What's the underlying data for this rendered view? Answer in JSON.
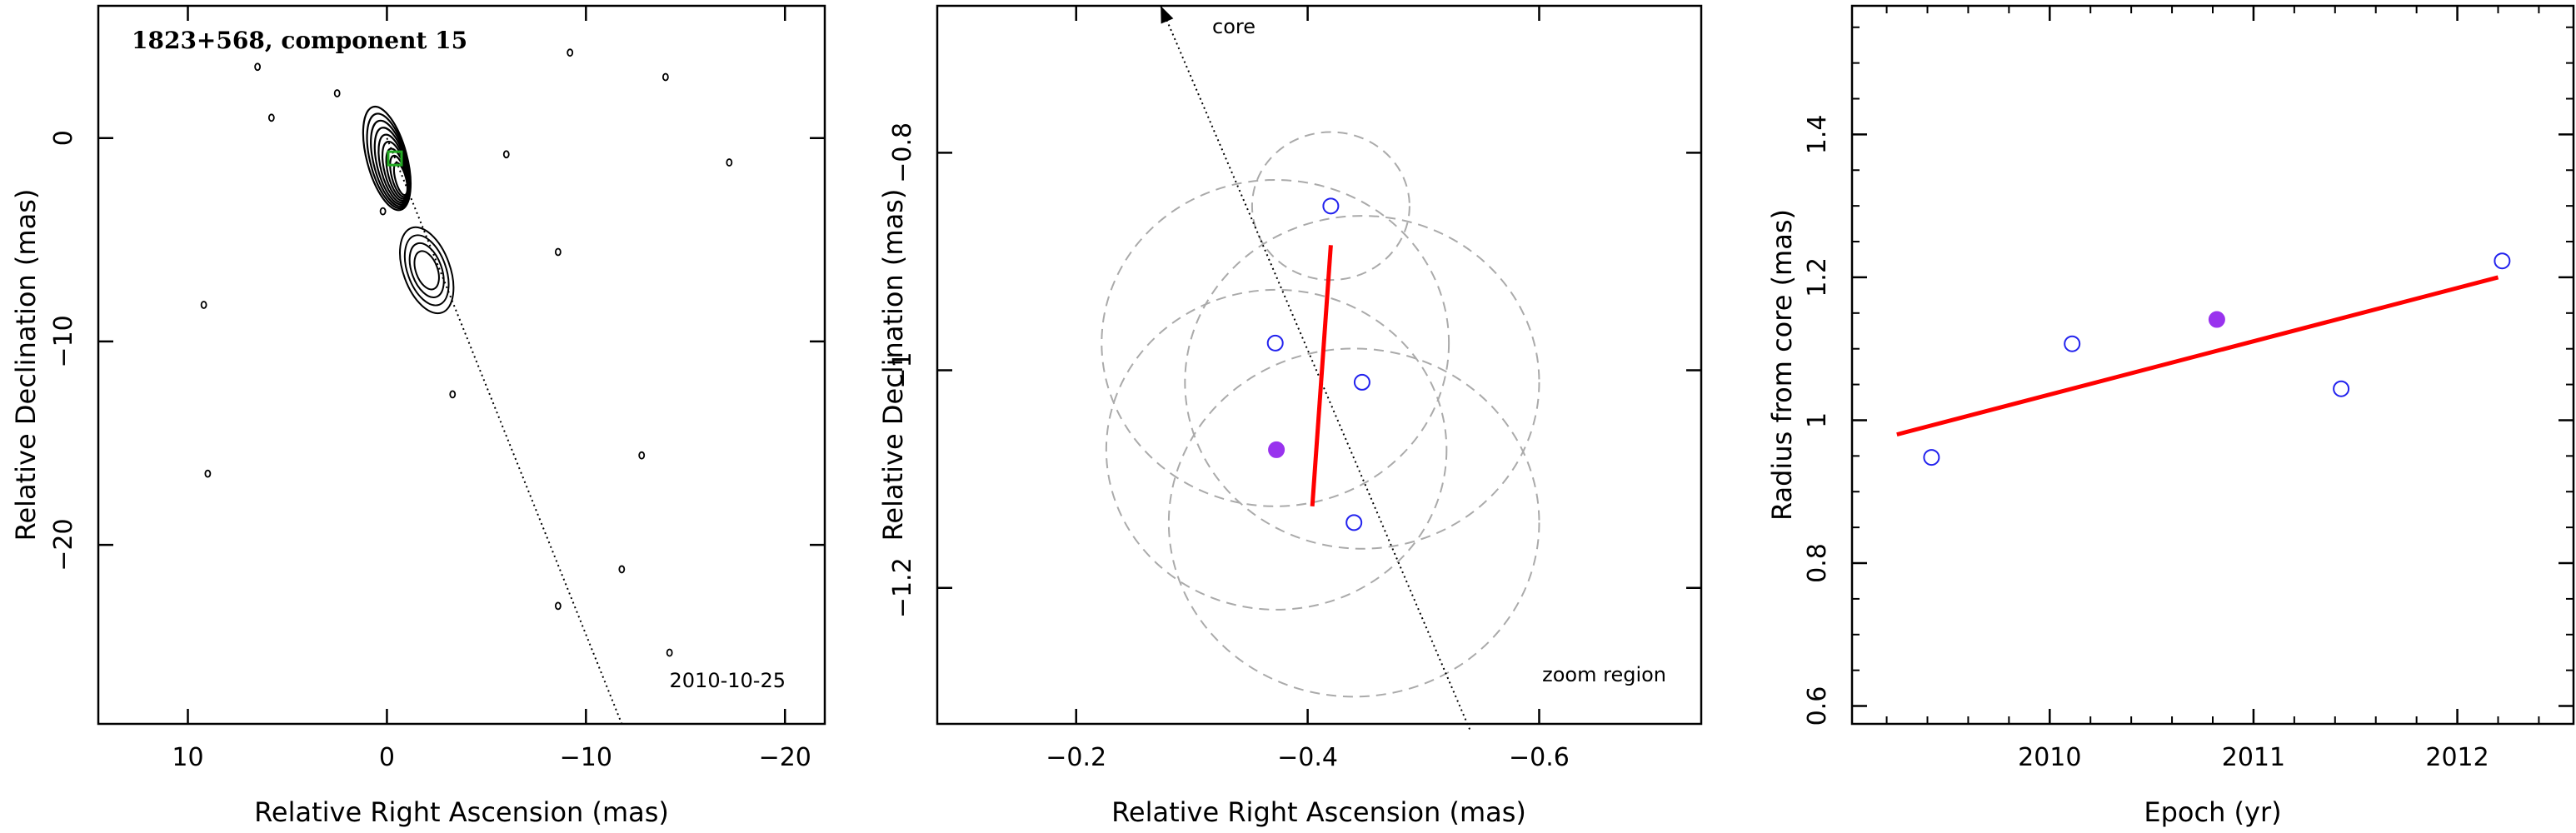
{
  "figure": {
    "panels": [
      {
        "id": "map",
        "title": "1823+568, component 15",
        "date_label": "2010-10-25"
      },
      {
        "id": "zoom",
        "core_label": "core",
        "region_label": "zoom region"
      },
      {
        "id": "radius",
        "fit_line": {
          "x0": 2009.25,
          "y0": 0.98,
          "x1": 2012.2,
          "y1": 1.2
        }
      }
    ]
  },
  "colors": {
    "fit_line": "#ff0000",
    "highlight_point": "#9933ee",
    "open_points": "#2222ee",
    "error_circles": "#aaaaaa",
    "contours": "#000000"
  },
  "chart_data": [
    {
      "type": "scatter",
      "title": "1823+568, component 15",
      "xlabel": "Relative Right Ascension (mas)",
      "ylabel": "Relative Declination (mas)",
      "xlim": [
        14.5,
        -22
      ],
      "ylim": [
        -28.8,
        6.5
      ],
      "xticks": [
        10,
        0,
        -10,
        -20
      ],
      "yticks": [
        0,
        -10,
        -20
      ],
      "annotations": [
        "2010-10-25"
      ],
      "jet_axis": {
        "from": [
          0,
          0
        ],
        "to": [
          -11.8,
          -28.8
        ],
        "style": "dotted"
      },
      "component_marker": {
        "x": -0.4,
        "y": -1.0,
        "color": "#22aa22"
      },
      "contour_features": [
        {
          "name": "core",
          "x": 0.0,
          "y": -1.0,
          "levels": 9
        },
        {
          "name": "inner-jet",
          "x": -2.0,
          "y": -6.5,
          "levels": 4
        }
      ],
      "noise_features": [
        {
          "x": 6.5,
          "y": 3.5
        },
        {
          "x": 2.5,
          "y": 2.2
        },
        {
          "x": 5.8,
          "y": 1.0
        },
        {
          "x": -9.2,
          "y": 4.2
        },
        {
          "x": -14.0,
          "y": 3.0
        },
        {
          "x": -6.0,
          "y": -0.8
        },
        {
          "x": -17.2,
          "y": -1.2
        },
        {
          "x": 0.2,
          "y": -3.6
        },
        {
          "x": -8.6,
          "y": -5.6
        },
        {
          "x": 9.2,
          "y": -8.2
        },
        {
          "x": -3.3,
          "y": -12.6
        },
        {
          "x": -12.8,
          "y": -15.6
        },
        {
          "x": 9.0,
          "y": -16.5
        },
        {
          "x": -11.8,
          "y": -21.2
        },
        {
          "x": -8.6,
          "y": -23.0
        },
        {
          "x": -14.2,
          "y": -25.3
        }
      ]
    },
    {
      "type": "scatter",
      "xlabel": "Relative Right Ascension (mas)",
      "ylabel": "Relative Declination (mas)",
      "xlim": [
        -0.08,
        -0.74
      ],
      "ylim": [
        -1.325,
        -0.665
      ],
      "xticks": [
        -0.2,
        -0.4,
        -0.6
      ],
      "yticks": [
        -0.8,
        -1,
        -1.2
      ],
      "annotations": [
        "core",
        "zoom region"
      ],
      "core_direction": {
        "from": [
          -0.54,
          -1.33
        ],
        "to": [
          -0.273,
          -0.665
        ],
        "style": "dotted",
        "arrow": true
      },
      "points": [
        {
          "x": -0.42,
          "y": -0.849,
          "r": 0.068,
          "filled": false
        },
        {
          "x": -0.372,
          "y": -0.975,
          "r": 0.15,
          "filled": false
        },
        {
          "x": -0.447,
          "y": -1.011,
          "r": 0.153,
          "filled": false
        },
        {
          "x": -0.373,
          "y": -1.073,
          "r": 0.147,
          "filled": true
        },
        {
          "x": -0.44,
          "y": -1.14,
          "r": 0.16,
          "filled": false
        }
      ],
      "trend_segment": {
        "from": [
          -0.42,
          -0.885
        ],
        "to": [
          -0.404,
          -1.125
        ],
        "color": "#ff0000"
      }
    },
    {
      "type": "scatter",
      "xlabel": "Epoch (yr)",
      "ylabel": "Radius from core (mas)",
      "xlim": [
        2009.03,
        2012.57
      ],
      "ylim": [
        0.575,
        1.58
      ],
      "xticks": [
        2010,
        2011,
        2012
      ],
      "yticks": [
        0.6,
        0.8,
        1,
        1.2,
        1.4
      ],
      "series": [
        {
          "x": [
            2009.42,
            2010.11,
            2011.43,
            2012.22
          ],
          "y": [
            0.948,
            1.107,
            1.044,
            1.223
          ],
          "filled": false
        },
        {
          "x": [
            2010.82
          ],
          "y": [
            1.141
          ],
          "filled": true
        }
      ],
      "fit": {
        "x": [
          2009.25,
          2012.2
        ],
        "y": [
          0.98,
          1.2
        ],
        "color": "#ff0000"
      }
    }
  ]
}
